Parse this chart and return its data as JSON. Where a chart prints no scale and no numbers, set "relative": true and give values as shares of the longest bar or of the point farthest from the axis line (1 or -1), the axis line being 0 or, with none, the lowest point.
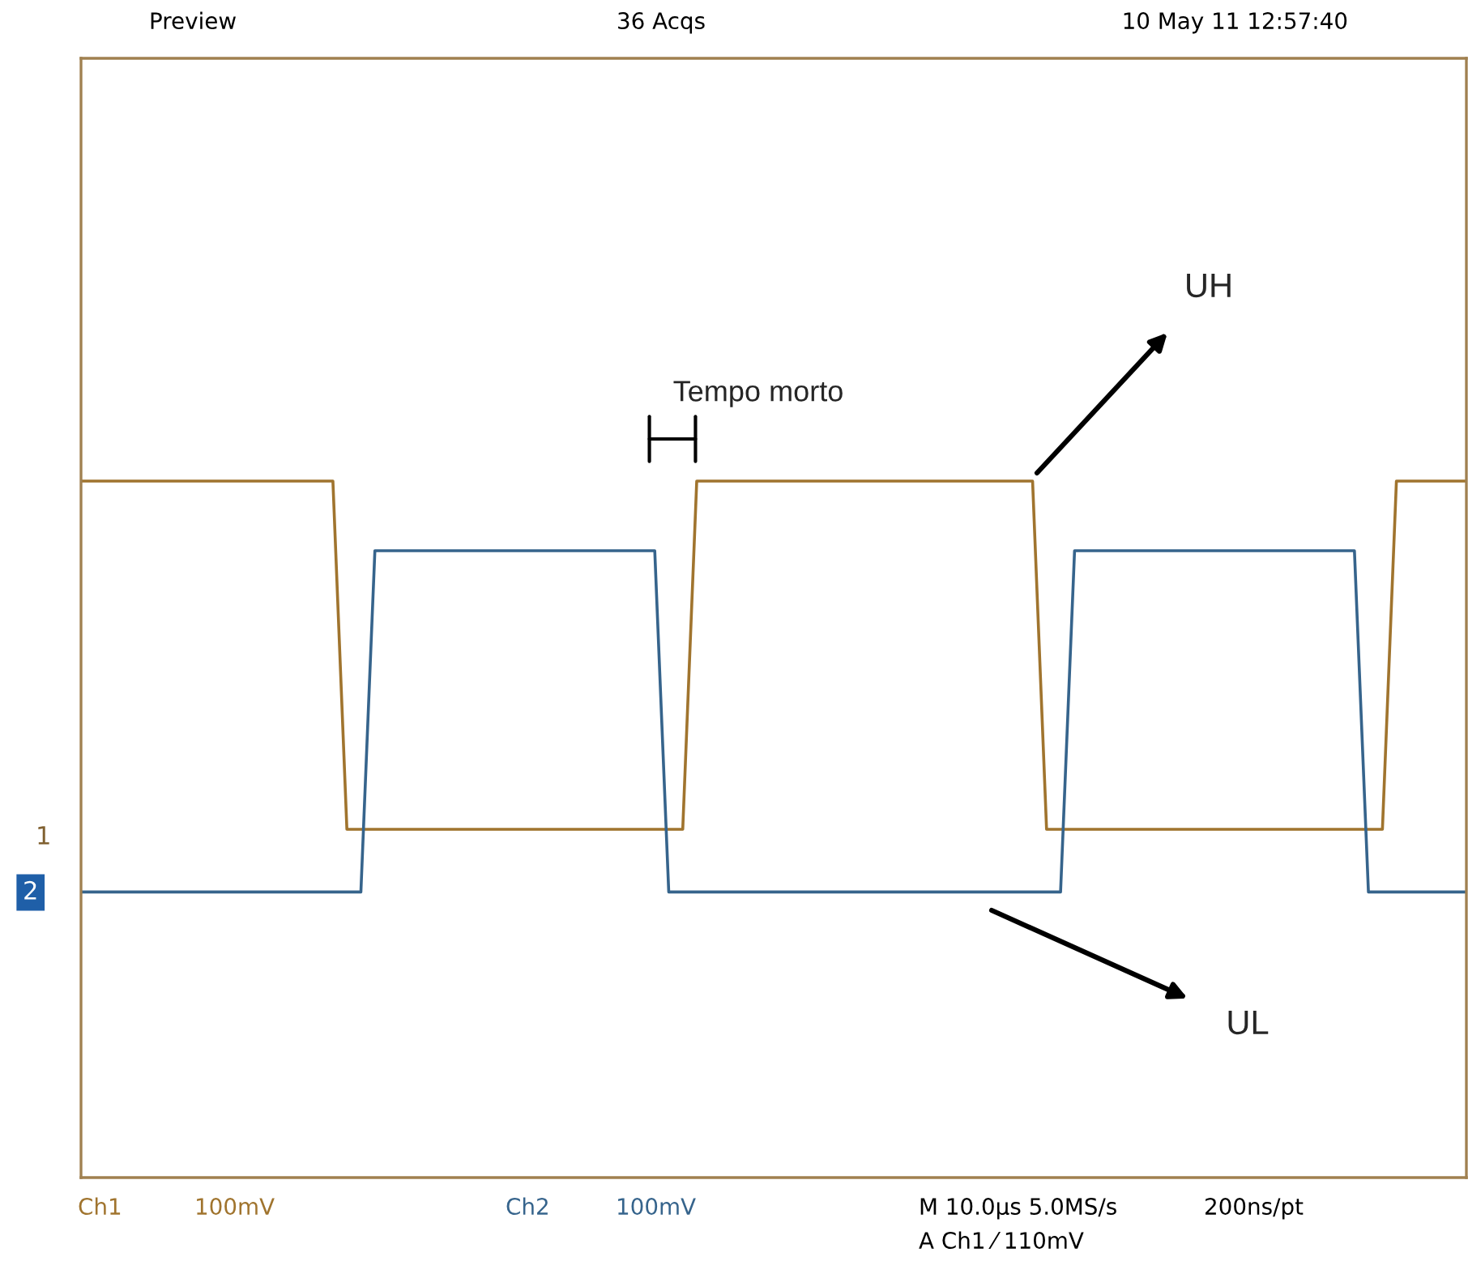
{
  "chart_data": {
    "type": "line",
    "relative": true,
    "categories": [
      null,
      null,
      null,
      null,
      null,
      null,
      null,
      null,
      null,
      null,
      null,
      null,
      null,
      null,
      null,
      null,
      null,
      null,
      null,
      null,
      null,
      null,
      null,
      null,
      null,
      null,
      null,
      null,
      null,
      null,
      null,
      null,
      null,
      null,
      null,
      null,
      null,
      null,
      null,
      null,
      null,
      null,
      null,
      null,
      null,
      null,
      null,
      null,
      null,
      null,
      null,
      null,
      null,
      null,
      null,
      null,
      null,
      null,
      null,
      null,
      null,
      null,
      null,
      null,
      null,
      null,
      null,
      null,
      null,
      null,
      null,
      null,
      null,
      null,
      null,
      null,
      null,
      null,
      null,
      null,
      null,
      null,
      null,
      null,
      null,
      null,
      null,
      null,
      null,
      null,
      null,
      null,
      null,
      null,
      null,
      null,
      null,
      null,
      null,
      null
    ],
    "series": [
      {
        "color": "#a0742e",
        "values": [
          1,
          1,
          1,
          1,
          1,
          1,
          1,
          1,
          1,
          1,
          1,
          1,
          1,
          1,
          1,
          1,
          1,
          1,
          1,
          0.5,
          0.5,
          0.5,
          0.5,
          0.5,
          0.5,
          0.5,
          0.5,
          0.5,
          0.5,
          0.5,
          0.5,
          0.5,
          0.5,
          0.5,
          0.5,
          0.5,
          0.5,
          0.5,
          0.5,
          0.5,
          0.5,
          0.5,
          0.5,
          0.5,
          1,
          1,
          1,
          1,
          1,
          1,
          1,
          1,
          1,
          1,
          1,
          1,
          1,
          1,
          1,
          1,
          1,
          1,
          1,
          1,
          1,
          1,
          1,
          1,
          1,
          0.5,
          0.5,
          0.5,
          0.5,
          0.5,
          0.5,
          0.5,
          0.5,
          0.5,
          0.5,
          0.5,
          0.5,
          0.5,
          0.5,
          0.5,
          0.5,
          0.5,
          0.5,
          0.5,
          0.5,
          0.5,
          0.5,
          0.5,
          0.5,
          0.5,
          1,
          1,
          1,
          1,
          1,
          1
        ]
      },
      {
        "color": "#36648c",
        "values": [
          0.41,
          0.41,
          0.41,
          0.41,
          0.41,
          0.41,
          0.41,
          0.41,
          0.41,
          0.41,
          0.41,
          0.41,
          0.41,
          0.41,
          0.41,
          0.41,
          0.41,
          0.41,
          0.41,
          0.41,
          0.41,
          0.9,
          0.9,
          0.9,
          0.9,
          0.9,
          0.9,
          0.9,
          0.9,
          0.9,
          0.9,
          0.9,
          0.9,
          0.9,
          0.9,
          0.9,
          0.9,
          0.9,
          0.9,
          0.9,
          0.9,
          0.9,
          0.41,
          0.41,
          0.41,
          0.41,
          0.41,
          0.41,
          0.41,
          0.41,
          0.41,
          0.41,
          0.41,
          0.41,
          0.41,
          0.41,
          0.41,
          0.41,
          0.41,
          0.41,
          0.41,
          0.41,
          0.41,
          0.41,
          0.41,
          0.41,
          0.41,
          0.41,
          0.41,
          0.41,
          0.41,
          0.9,
          0.9,
          0.9,
          0.9,
          0.9,
          0.9,
          0.9,
          0.9,
          0.9,
          0.9,
          0.9,
          0.9,
          0.9,
          0.9,
          0.9,
          0.9,
          0.9,
          0.9,
          0.9,
          0.9,
          0.9,
          0.41,
          0.41,
          0.41,
          0.41,
          0.41,
          0.41,
          0.41,
          0.41
        ]
      }
    ],
    "annotations": [
      "Preview",
      "36 Acqs",
      "10 May 11 12:57:40",
      "Ch1",
      "100mV",
      "Ch2",
      "100mV",
      "M 10.0µs 5.0MS/s",
      "200ns/pt",
      "A Ch1 ⁄ 110mV",
      "1",
      "2",
      "Tempo morto",
      "UH",
      "UL"
    ]
  }
}
